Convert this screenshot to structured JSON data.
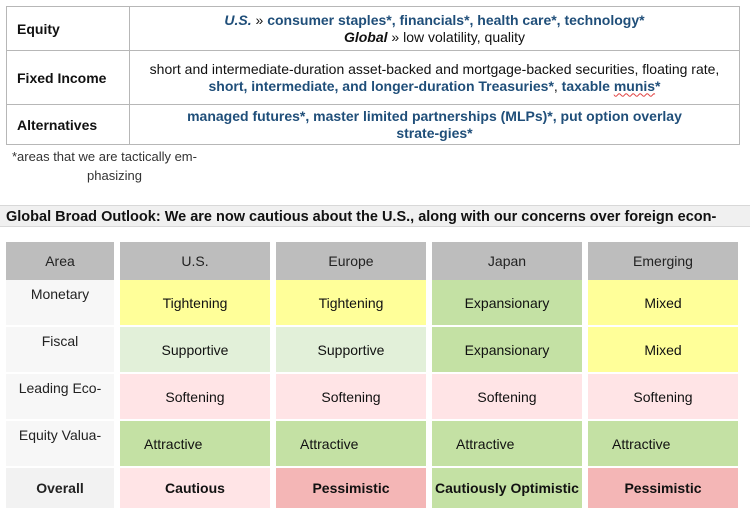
{
  "allocation": {
    "equity": {
      "label": "Equity",
      "us_prefix": "U.S.",
      "us_sep": " » ",
      "us_items": "consumer staples*, financials*, health care*, technology*",
      "global_prefix": "Global",
      "global_sep": " » ",
      "global_items": "low volatility, quality"
    },
    "fixed_income": {
      "label": "Fixed Income",
      "text_plain": "short and intermediate-duration asset-backed and mortgage-backed securities, floating rate, ",
      "text_bold": "short, intermediate, and longer-duration Treasuries*",
      "text_sep": ", ",
      "text_bold2_a": "taxable ",
      "text_bold2_b": "munis",
      "text_bold2_c": "*"
    },
    "alternatives": {
      "label": "Alternatives",
      "text": "managed futures*, master limited partnerships (MLPs)*, put option overlay strate-gies*"
    }
  },
  "footnote": {
    "line1": "*areas that we are tactically em-",
    "line2": "phasizing"
  },
  "headline": "Global Broad Outlook: We are now cautious about the U.S., along with our concerns over foreign econ-",
  "outlook": {
    "headers": [
      "Area",
      "U.S.",
      "Europe",
      "Japan",
      "Emerging"
    ],
    "rows": [
      {
        "area": "Monetary",
        "values": [
          "Tightening",
          "Tightening",
          "Expansionary",
          "Mixed"
        ]
      },
      {
        "area": "Fiscal",
        "values": [
          "Supportive",
          "Supportive",
          "Expansionary",
          "Mixed"
        ]
      },
      {
        "area": "Leading Eco-",
        "values": [
          "Softening",
          "Softening",
          "Softening",
          "Softening"
        ]
      },
      {
        "area": "Equity Valua-",
        "values": [
          "Attractive",
          "Attractive",
          "Attractive",
          "Attractive"
        ]
      },
      {
        "area": "Overall",
        "values": [
          "Cautious",
          "Pessimistic",
          "Cautiously Optimistic",
          "Pessimistic"
        ]
      }
    ],
    "colors": {
      "header": "#bdbdbd",
      "yellow": "#ffff99",
      "green": "#c4e1a4",
      "light_green": "#e2f0d9",
      "light_pink": "#ffe4e6",
      "pink": "#f4b6b6",
      "gray_cell": "#f2f2f2"
    }
  }
}
